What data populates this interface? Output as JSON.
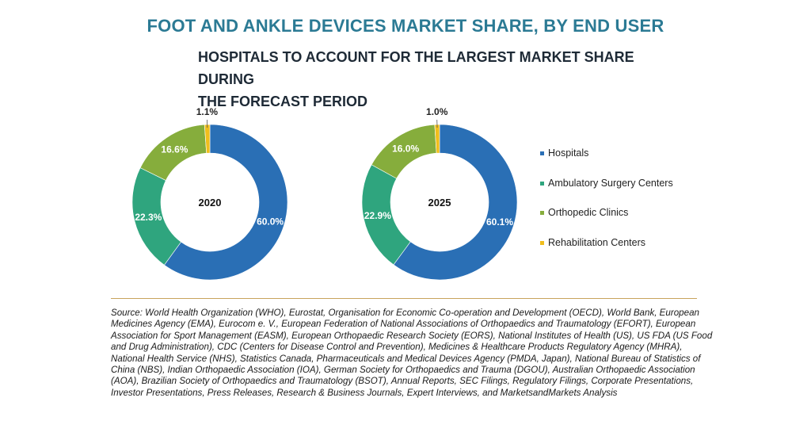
{
  "header": {
    "title": "FOOT AND ANKLE DEVICES MARKET SHARE, BY END USER",
    "subtitle_line1": "HOSPITALS TO ACCOUNT FOR THE LARGEST MARKET SHARE DURING",
    "subtitle_line2": "THE FORECAST PERIOD"
  },
  "colors": {
    "Hospitals": "#2a6fb5",
    "Ambulatory Surgery Centers": "#2fa57e",
    "Orthopedic Clinics": "#86ad3c",
    "Rehabilitation Centers": "#f0be1c"
  },
  "legend": [
    {
      "label": "Hospitals"
    },
    {
      "label": "Ambulatory Surgery Centers"
    },
    {
      "label": "Orthopedic Clinics"
    },
    {
      "label": "Rehabilitation Centers"
    }
  ],
  "chart_data": [
    {
      "type": "pie",
      "donut": true,
      "center_label": "2020",
      "categories": [
        "Hospitals",
        "Ambulatory Surgery Centers",
        "Orthopedic Clinics",
        "Rehabilitation Centers"
      ],
      "values": [
        60.0,
        22.3,
        16.6,
        1.1
      ],
      "value_labels": [
        "60.0%",
        "22.3%",
        "16.6%",
        "1.1%"
      ]
    },
    {
      "type": "pie",
      "donut": true,
      "center_label": "2025",
      "categories": [
        "Hospitals",
        "Ambulatory Surgery Centers",
        "Orthopedic Clinics",
        "Rehabilitation Centers"
      ],
      "values": [
        60.1,
        22.9,
        16.0,
        1.0
      ],
      "value_labels": [
        "60.1%",
        "22.9%",
        "16.0%",
        "1.0%"
      ]
    }
  ],
  "source": "Source: World Health Organization (WHO), Eurostat, Organisation for Economic Co-operation and Development (OECD), World Bank, European Medicines Agency (EMA), Eurocom e. V., European Federation of National Associations of Orthopaedics and Traumatology (EFORT), European Association for Sport Management (EASM), European Orthopaedic Research Society (EORS), National Institutes of Health (US), US FDA (US Food and Drug Administration), CDC (Centers for Disease Control and Prevention), Medicines & Healthcare Products Regulatory Agency (MHRA), National Health Service (NHS), Statistics Canada, Pharmaceuticals and Medical Devices Agency (PMDA, Japan), National Bureau of Statistics of China (NBS), Indian Orthopaedic Association (IOA), German Society for Orthopaedics and Trauma (DGOU), Australian Orthopaedic Association (AOA), Brazilian Society of Orthopaedics and Traumatology (BSOT), Annual Reports, SEC Filings, Regulatory Filings, Corporate Presentations, Investor Presentations, Press Releases, Research & Business Journals, Expert Interviews, and MarketsandMarkets Analysis"
}
